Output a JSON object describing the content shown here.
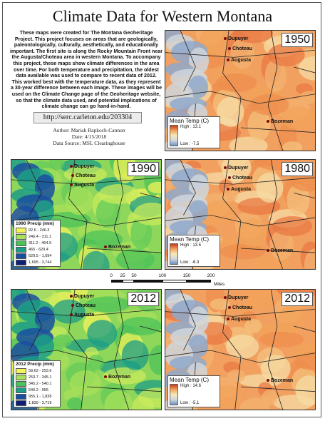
{
  "title": "Climate Data for Western Montana",
  "description": "These maps were created for The Montana Geoheritage Project. This project focuses on areas that are geologically, paleontologically, culturally, aesthetically, and educationally important. The first site is along the Rocky Mountain Front near the Augusta/Choteau area in western Montana. To accompany this project, these maps show climate differences in the area over time. For both temperature and precipitation, the oldest data available was used to compare to recent data of 2012. This worked best with the temperature data, as they represent a 30-year difference between each image. These images will be used on the Climate Change page of the Geoheritage website, so that the climate data used, and potential implications of climate change can go hand-in-hand.",
  "url": "http://serc.carleton.edu/203304",
  "author": "Author: Mariah Rapkoch-Cannon",
  "date": "Date: 4/15/2018",
  "source": "Data Source: MSL Clearinghouse",
  "towns": [
    "Dupuyer",
    "Choteau",
    "Augusta",
    "Bozeman"
  ],
  "maps": [
    {
      "year": "1950",
      "legend_title": "Mean Temp (C)",
      "high": "High : 13.1",
      "low": "Low : -7.5"
    },
    {
      "year": "1990",
      "legend_title": "1990 Precip (mm)",
      "classes": [
        "92.6 - 246.3",
        "246.4 - 311.1",
        "311.2 - 464.9",
        "465 - 629.4",
        "629.5 - 1,694",
        "1,695 - 3,744"
      ]
    },
    {
      "year": "1980",
      "legend_title": "Mean Temp (C)",
      "high": "High : 13.5",
      "low": "Low : -6.3"
    },
    {
      "year": "2012",
      "legend_title": "2012 Precip (mm)",
      "classes": [
        "58.62 - 253.6",
        "253.7 - 345.1",
        "345.2 - 540.1",
        "540.2 - 955",
        "955.1 - 1,838",
        "1,839 - 3,719"
      ]
    },
    {
      "year": "2012",
      "legend_title": "Mean Temp (C)",
      "high": "High : 14.6",
      "low": "Low : -5.1"
    }
  ],
  "scale": {
    "ticks": [
      "0",
      "25",
      "50",
      "100",
      "150",
      "200"
    ],
    "unit": "Miles"
  },
  "colors": {
    "precip_classes": [
      "#f3f35a",
      "#a8e05a",
      "#4cc35a",
      "#1c9d86",
      "#1a4fa0",
      "#0c1e78"
    ],
    "temp_high": "#c83a1c",
    "temp_low": "#6f93c4",
    "town_marker": "#7a0a0a"
  }
}
